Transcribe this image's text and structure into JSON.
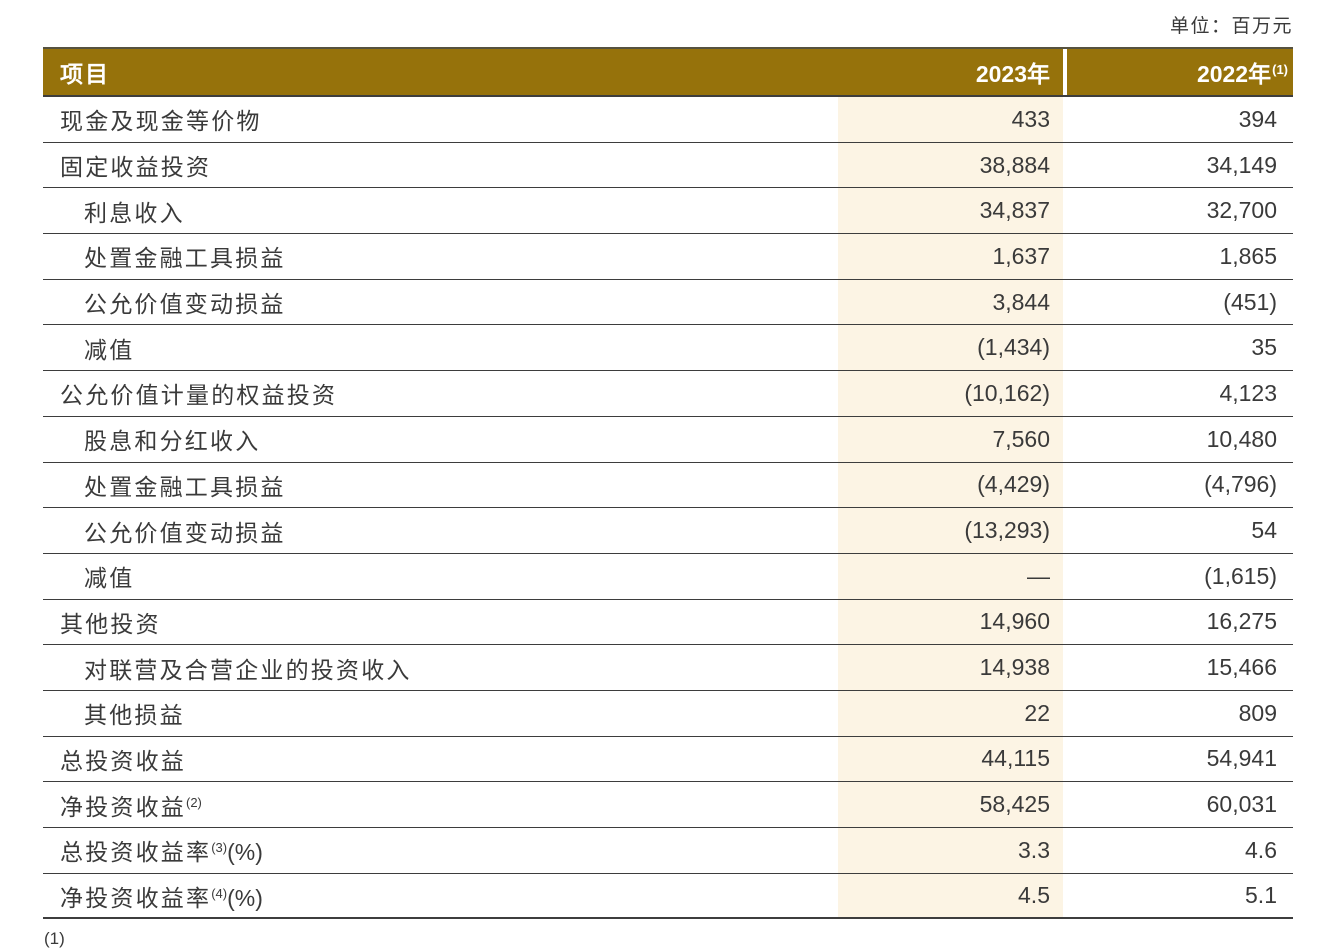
{
  "unit_label": "单位：百万元",
  "colors": {
    "header_gold": "#96720B",
    "highlight_cream": "#FCF4E4",
    "line": "#3D3D3D",
    "text": "#3A3A3A",
    "header_text": "#FFFFFF"
  },
  "table": {
    "header": {
      "item": "项目",
      "col_2023": "2023年",
      "col_2022": "2022年",
      "col_2022_sup": "(1)"
    },
    "rows": [
      {
        "label": "现金及现金等价物",
        "sup": "",
        "suffix": "",
        "indent": 0,
        "v2023": "433",
        "v2022": "394"
      },
      {
        "label": "固定收益投资",
        "sup": "",
        "suffix": "",
        "indent": 0,
        "v2023": "38,884",
        "v2022": "34,149"
      },
      {
        "label": "利息收入",
        "sup": "",
        "suffix": "",
        "indent": 1,
        "v2023": "34,837",
        "v2022": "32,700"
      },
      {
        "label": "处置金融工具损益",
        "sup": "",
        "suffix": "",
        "indent": 1,
        "v2023": "1,637",
        "v2022": "1,865"
      },
      {
        "label": "公允价值变动损益",
        "sup": "",
        "suffix": "",
        "indent": 1,
        "v2023": "3,844",
        "v2022": "(451)"
      },
      {
        "label": "减值",
        "sup": "",
        "suffix": "",
        "indent": 1,
        "v2023": "(1,434)",
        "v2022": "35"
      },
      {
        "label": "公允价值计量的权益投资",
        "sup": "",
        "suffix": "",
        "indent": 0,
        "v2023": "(10,162)",
        "v2022": "4,123"
      },
      {
        "label": "股息和分红收入",
        "sup": "",
        "suffix": "",
        "indent": 1,
        "v2023": "7,560",
        "v2022": "10,480"
      },
      {
        "label": "处置金融工具损益",
        "sup": "",
        "suffix": "",
        "indent": 1,
        "v2023": "(4,429)",
        "v2022": "(4,796)"
      },
      {
        "label": "公允价值变动损益",
        "sup": "",
        "suffix": "",
        "indent": 1,
        "v2023": "(13,293)",
        "v2022": "54"
      },
      {
        "label": "减值",
        "sup": "",
        "suffix": "",
        "indent": 1,
        "v2023": "—",
        "v2022": "(1,615)"
      },
      {
        "label": "其他投资",
        "sup": "",
        "suffix": "",
        "indent": 0,
        "v2023": "14,960",
        "v2022": "16,275"
      },
      {
        "label": "对联营及合营企业的投资收入",
        "sup": "",
        "suffix": "",
        "indent": 1,
        "v2023": "14,938",
        "v2022": "15,466"
      },
      {
        "label": "其他损益",
        "sup": "",
        "suffix": "",
        "indent": 1,
        "v2023": "22",
        "v2022": "809"
      },
      {
        "label": "总投资收益",
        "sup": "",
        "suffix": "",
        "indent": 0,
        "v2023": "44,115",
        "v2022": "54,941"
      },
      {
        "label": "净投资收益",
        "sup": "(2)",
        "suffix": "",
        "indent": 0,
        "v2023": "58,425",
        "v2022": "60,031"
      },
      {
        "label": "总投资收益率",
        "sup": "(3)",
        "suffix": "(%)",
        "indent": 0,
        "v2023": "3.3",
        "v2022": "4.6"
      },
      {
        "label": "净投资收益率",
        "sup": "(4)",
        "suffix": "(%)",
        "indent": 0,
        "v2023": "4.5",
        "v2022": "5.1"
      }
    ]
  },
  "footnote_partial": "(1)"
}
